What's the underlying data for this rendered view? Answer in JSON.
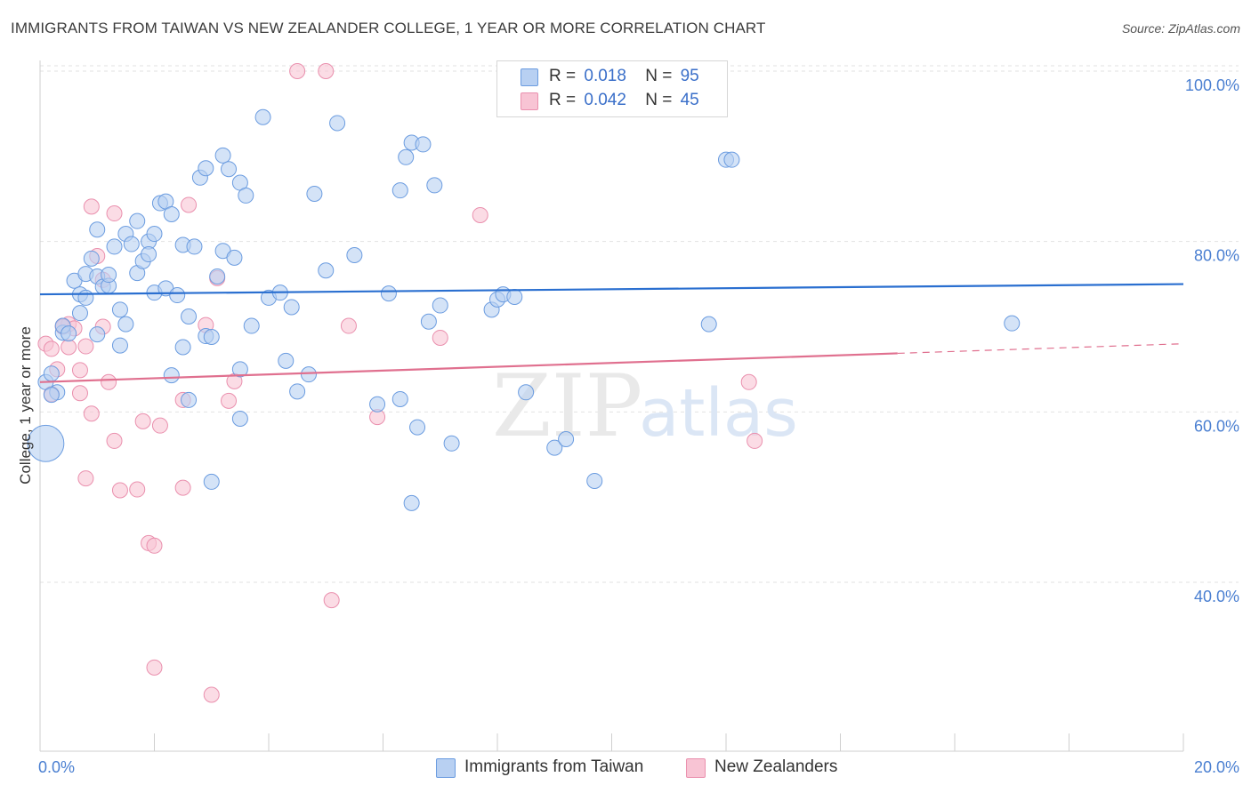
{
  "title": "IMMIGRANTS FROM TAIWAN VS NEW ZEALANDER COLLEGE, 1 YEAR OR MORE CORRELATION CHART",
  "source": "Source: ZipAtlas.com",
  "watermark": {
    "zip": "ZIP",
    "atlas": "atlas"
  },
  "legend": {
    "r_label": "R =",
    "n_label": "N =",
    "series": [
      {
        "r": "0.018",
        "n": "95"
      },
      {
        "r": "0.042",
        "n": "45"
      }
    ]
  },
  "chart_data": {
    "type": "scatter",
    "title": "IMMIGRANTS FROM TAIWAN VS NEW ZEALANDER COLLEGE, 1 YEAR OR MORE CORRELATION CHART",
    "xlabel": "",
    "ylabel": "College, 1 year or more",
    "xlim": [
      0,
      20
    ],
    "ylim": [
      18,
      100
    ],
    "x_tick_labels": [
      "0.0%",
      "20.0%"
    ],
    "y_ticks": [
      40,
      60,
      80,
      100
    ],
    "y_tick_labels": [
      "40.0%",
      "60.0%",
      "80.0%",
      "100.0%"
    ],
    "grid": true,
    "colors": {
      "taiwan_fill": "#b8d0f2",
      "taiwan_stroke": "#6b9ce0",
      "taiwan_line": "#2a6fd0",
      "nz_fill": "#f8c4d4",
      "nz_stroke": "#ea90ae",
      "nz_line": "#e0708f"
    },
    "series": [
      {
        "name": "Immigrants from Taiwan",
        "trend": {
          "x": [
            0,
            20
          ],
          "y": [
            73.8,
            75.0
          ],
          "dashed_from": null
        },
        "points": [
          [
            0.1,
            63.5,
            1
          ],
          [
            0.2,
            64.5,
            1
          ],
          [
            0.3,
            62.3,
            1
          ],
          [
            0.4,
            69.3,
            1
          ],
          [
            0.4,
            70.1,
            1
          ],
          [
            0.5,
            69.2,
            1
          ],
          [
            0.6,
            75.4,
            1
          ],
          [
            0.7,
            73.8,
            1
          ],
          [
            0.7,
            71.6,
            1
          ],
          [
            0.8,
            73.4,
            1
          ],
          [
            0.8,
            76.2,
            1
          ],
          [
            0.9,
            78.0,
            1
          ],
          [
            1.0,
            75.9,
            1
          ],
          [
            1.0,
            69.1,
            1
          ],
          [
            1.0,
            81.4,
            1
          ],
          [
            1.1,
            74.7,
            1
          ],
          [
            1.2,
            74.8,
            1
          ],
          [
            1.2,
            76.1,
            1
          ],
          [
            1.3,
            79.4,
            1
          ],
          [
            1.4,
            72.0,
            1
          ],
          [
            1.4,
            67.8,
            1
          ],
          [
            1.5,
            80.9,
            1
          ],
          [
            1.5,
            70.3,
            1
          ],
          [
            1.6,
            79.7,
            1
          ],
          [
            1.7,
            82.4,
            1
          ],
          [
            1.7,
            76.3,
            1
          ],
          [
            1.8,
            77.7,
            1
          ],
          [
            1.9,
            80.0,
            1
          ],
          [
            1.9,
            78.5,
            1
          ],
          [
            2.0,
            74.0,
            1
          ],
          [
            2.0,
            80.9,
            1
          ],
          [
            2.1,
            84.5,
            1
          ],
          [
            2.2,
            74.5,
            1
          ],
          [
            2.2,
            84.7,
            1
          ],
          [
            2.3,
            83.2,
            1
          ],
          [
            2.3,
            64.3,
            1
          ],
          [
            2.4,
            73.7,
            1
          ],
          [
            2.5,
            79.6,
            1
          ],
          [
            2.5,
            67.6,
            1
          ],
          [
            2.6,
            71.2,
            1
          ],
          [
            2.6,
            61.4,
            1
          ],
          [
            2.7,
            79.4,
            1
          ],
          [
            2.8,
            87.5,
            1
          ],
          [
            2.9,
            88.6,
            1
          ],
          [
            2.9,
            68.9,
            1
          ],
          [
            3.0,
            68.8,
            1
          ],
          [
            3.1,
            75.9,
            1
          ],
          [
            3.2,
            78.9,
            1
          ],
          [
            3.2,
            90.1,
            1
          ],
          [
            3.3,
            88.5,
            1
          ],
          [
            3.4,
            78.1,
            1
          ],
          [
            3.5,
            59.2,
            1
          ],
          [
            3.5,
            65.0,
            1
          ],
          [
            3.5,
            86.9,
            1
          ],
          [
            3.6,
            85.4,
            1
          ],
          [
            3.7,
            70.1,
            1
          ],
          [
            3.9,
            94.6,
            1
          ],
          [
            4.0,
            73.4,
            1
          ],
          [
            4.2,
            74.0,
            1
          ],
          [
            4.3,
            66.0,
            1
          ],
          [
            4.4,
            72.3,
            1
          ],
          [
            4.5,
            62.4,
            1
          ],
          [
            4.7,
            64.4,
            1
          ],
          [
            4.8,
            85.6,
            1
          ],
          [
            5.0,
            76.6,
            1
          ],
          [
            5.2,
            93.9,
            1
          ],
          [
            5.5,
            78.4,
            1
          ],
          [
            5.9,
            60.9,
            1
          ],
          [
            6.1,
            73.9,
            1
          ],
          [
            6.3,
            86.0,
            1
          ],
          [
            6.3,
            61.5,
            1
          ],
          [
            6.4,
            89.9,
            1
          ],
          [
            6.5,
            91.6,
            1
          ],
          [
            6.5,
            49.3,
            1
          ],
          [
            6.6,
            58.2,
            1
          ],
          [
            6.7,
            91.4,
            1
          ],
          [
            6.8,
            70.6,
            1
          ],
          [
            6.9,
            86.6,
            1
          ],
          [
            7.0,
            72.5,
            1
          ],
          [
            7.2,
            56.3,
            1
          ],
          [
            7.9,
            72.0,
            1
          ],
          [
            8.0,
            73.2,
            1
          ],
          [
            8.1,
            73.8,
            1
          ],
          [
            8.3,
            73.5,
            1
          ],
          [
            8.5,
            62.3,
            1
          ],
          [
            9.0,
            55.8,
            1
          ],
          [
            9.2,
            56.8,
            1
          ],
          [
            9.7,
            51.9,
            1
          ],
          [
            11.7,
            70.3,
            1
          ],
          [
            12.0,
            89.6,
            1
          ],
          [
            12.1,
            89.6,
            1
          ],
          [
            17.0,
            70.4,
            1
          ],
          [
            0.1,
            56.3,
            2.4
          ],
          [
            0.2,
            62.0,
            1
          ],
          [
            3.0,
            51.8,
            1
          ]
        ]
      },
      {
        "name": "New Zealanders",
        "trend": {
          "x": [
            0,
            20
          ],
          "y": [
            63.5,
            68.0
          ],
          "dashed_from": 15.0
        },
        "points": [
          [
            0.1,
            68.0,
            1
          ],
          [
            0.2,
            67.4,
            1
          ],
          [
            0.2,
            62.1,
            1
          ],
          [
            0.3,
            65.0,
            1
          ],
          [
            0.4,
            70.1,
            1
          ],
          [
            0.5,
            70.3,
            1
          ],
          [
            0.5,
            67.6,
            1
          ],
          [
            0.6,
            69.8,
            1
          ],
          [
            0.7,
            64.9,
            1
          ],
          [
            0.7,
            62.2,
            1
          ],
          [
            0.8,
            67.7,
            1
          ],
          [
            0.8,
            52.2,
            1
          ],
          [
            0.9,
            84.1,
            1
          ],
          [
            0.9,
            59.8,
            1
          ],
          [
            1.0,
            78.3,
            1
          ],
          [
            1.1,
            70.0,
            1
          ],
          [
            1.2,
            63.5,
            1
          ],
          [
            1.3,
            83.3,
            1
          ],
          [
            1.3,
            56.6,
            1
          ],
          [
            1.4,
            50.8,
            1
          ],
          [
            1.7,
            50.9,
            1
          ],
          [
            1.8,
            58.9,
            1
          ],
          [
            1.9,
            44.6,
            1
          ],
          [
            2.0,
            44.3,
            1
          ],
          [
            2.0,
            30.0,
            1
          ],
          [
            2.1,
            58.4,
            1
          ],
          [
            2.5,
            61.4,
            1
          ],
          [
            2.5,
            51.1,
            1
          ],
          [
            2.6,
            84.3,
            1
          ],
          [
            2.9,
            70.2,
            1
          ],
          [
            3.0,
            26.8,
            1
          ],
          [
            3.1,
            75.7,
            1
          ],
          [
            3.3,
            61.3,
            1
          ],
          [
            3.4,
            63.6,
            1
          ],
          [
            4.5,
            100.0,
            1
          ],
          [
            5.0,
            100.0,
            1
          ],
          [
            5.1,
            37.9,
            1
          ],
          [
            5.4,
            70.1,
            1
          ],
          [
            5.9,
            59.4,
            1
          ],
          [
            7.0,
            68.7,
            1
          ],
          [
            7.7,
            83.1,
            1
          ],
          [
            12.4,
            63.5,
            1
          ],
          [
            12.5,
            56.6,
            1
          ],
          [
            0.4,
            70.0,
            1
          ],
          [
            1.1,
            75.5,
            1
          ]
        ]
      }
    ]
  },
  "bottom_legend": [
    "Immigrants from Taiwan",
    "New Zealanders"
  ]
}
